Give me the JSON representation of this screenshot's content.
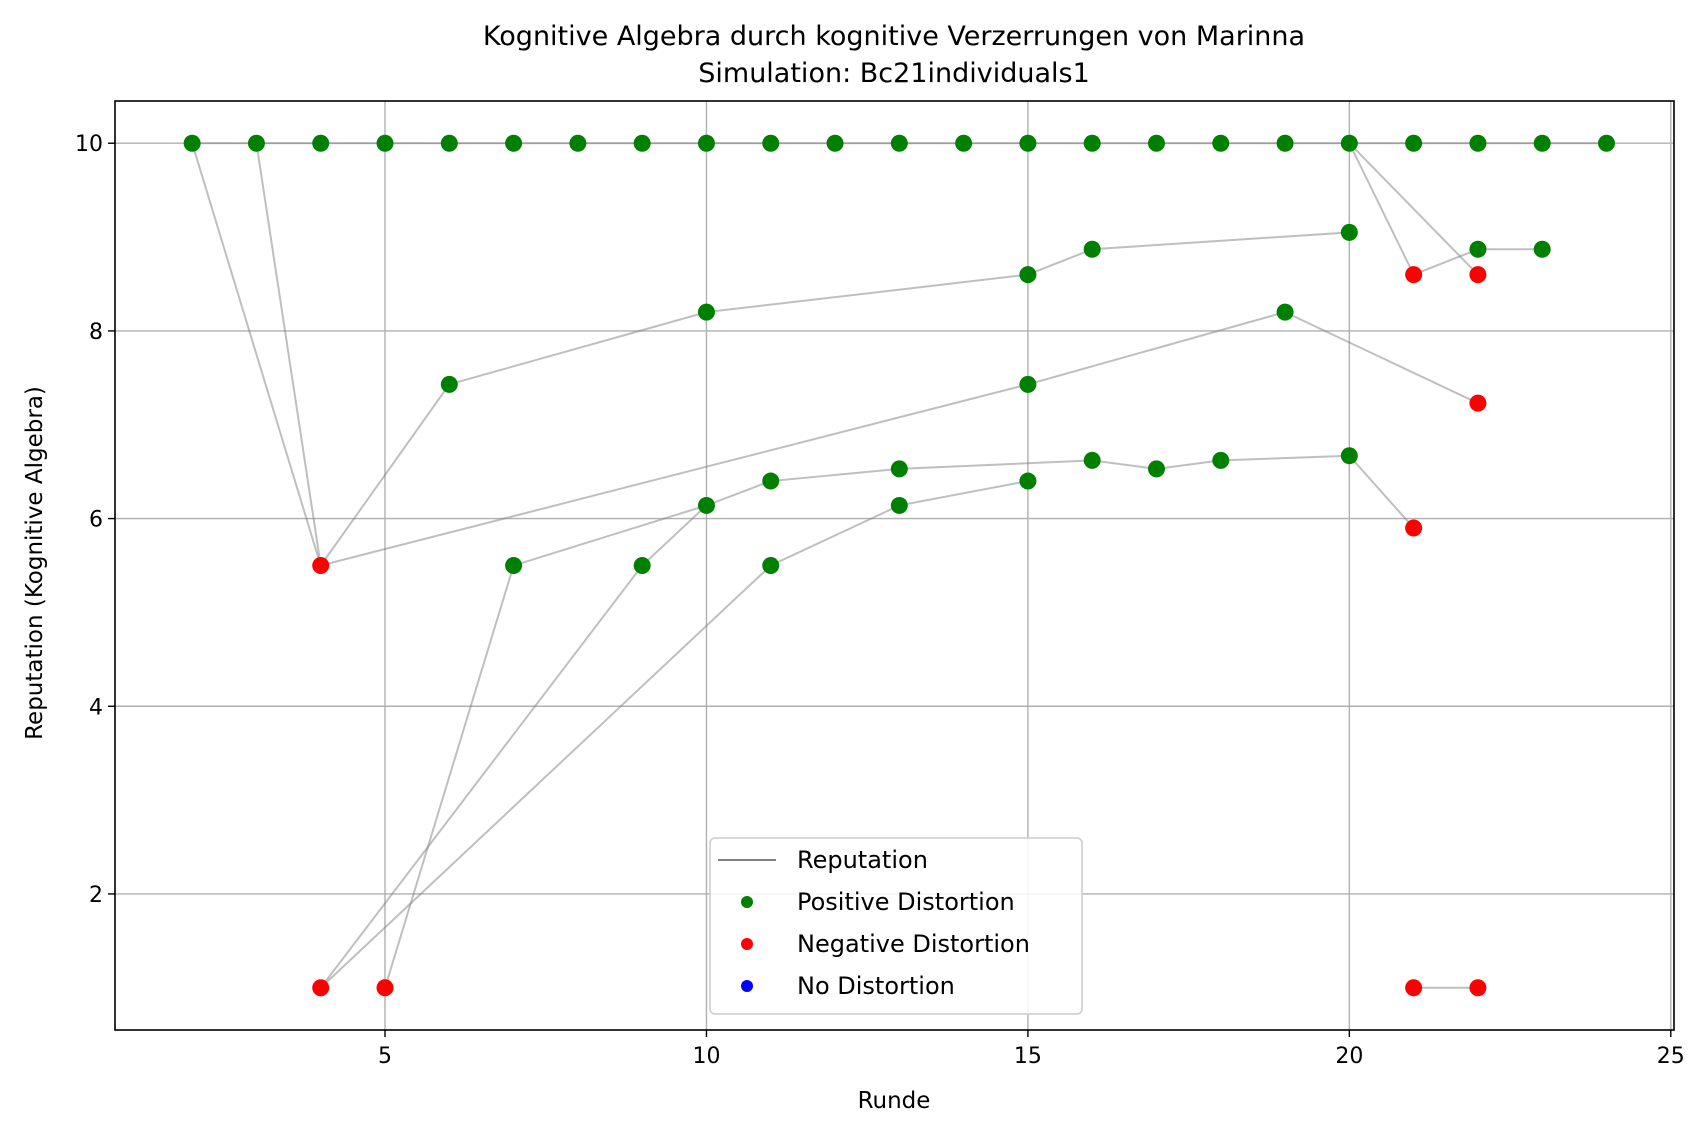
{
  "chart_data": {
    "type": "scatter",
    "title": "Kognitive Algebra durch kognitive Verzerrungen von Marinna",
    "subtitle": "Simulation: Bc21individuals1",
    "xlabel": "Runde",
    "ylabel": "Reputation (Kognitive Algebra)",
    "xlim": [
      0.8,
      25.05
    ],
    "ylim": [
      0.55,
      10.45
    ],
    "xticks": [
      5,
      10,
      15,
      20,
      25
    ],
    "yticks": [
      2,
      4,
      6,
      8,
      10
    ],
    "grid": true,
    "legend_position": "bottom-center",
    "legend": [
      {
        "label": "Reputation",
        "kind": "line",
        "color": "#808080"
      },
      {
        "label": "Positive Distortion",
        "kind": "marker",
        "color": "#008000"
      },
      {
        "label": "Negative Distortion",
        "kind": "marker",
        "color": "#ff0000"
      },
      {
        "label": "No Distortion",
        "kind": "marker",
        "color": "#0000ff"
      }
    ],
    "colors": {
      "positive": "#008000",
      "negative": "#ff0000",
      "none": "#0000ff",
      "line": "#808080"
    },
    "trajectories": [
      [
        [
          2,
          10
        ],
        [
          4,
          5.5
        ],
        [
          6,
          7.43
        ],
        [
          10,
          8.2
        ],
        [
          15,
          8.6
        ],
        [
          16,
          8.87
        ],
        [
          20,
          9.05
        ]
      ],
      [
        [
          3,
          10
        ],
        [
          4,
          5.5
        ],
        [
          15,
          7.43
        ],
        [
          19,
          8.2
        ],
        [
          22,
          7.23
        ]
      ],
      [
        [
          4,
          1
        ],
        [
          9,
          5.5
        ],
        [
          10,
          6.14
        ],
        [
          11,
          6.4
        ],
        [
          13,
          6.53
        ],
        [
          16,
          6.62
        ],
        [
          17,
          6.53
        ],
        [
          18,
          6.62
        ],
        [
          20,
          6.67
        ],
        [
          21,
          5.9
        ]
      ],
      [
        [
          5,
          1
        ],
        [
          7,
          5.5
        ],
        [
          10,
          6.14
        ]
      ],
      [
        [
          4,
          1
        ],
        [
          11,
          5.5
        ],
        [
          13,
          6.14
        ],
        [
          15,
          6.4
        ]
      ],
      [
        [
          20,
          10
        ],
        [
          21,
          8.6
        ],
        [
          22,
          8.87
        ],
        [
          23,
          8.87
        ]
      ],
      [
        [
          20,
          10
        ],
        [
          22,
          8.6
        ]
      ],
      [
        [
          21,
          1
        ],
        [
          22,
          1
        ]
      ],
      [
        [
          2,
          10
        ],
        [
          24,
          10
        ]
      ]
    ],
    "points": [
      {
        "x": 2,
        "y": 10,
        "d": "positive"
      },
      {
        "x": 3,
        "y": 10,
        "d": "positive"
      },
      {
        "x": 4,
        "y": 10,
        "d": "positive"
      },
      {
        "x": 5,
        "y": 10,
        "d": "positive"
      },
      {
        "x": 6,
        "y": 10,
        "d": "positive"
      },
      {
        "x": 7,
        "y": 10,
        "d": "positive"
      },
      {
        "x": 8,
        "y": 10,
        "d": "positive"
      },
      {
        "x": 9,
        "y": 10,
        "d": "positive"
      },
      {
        "x": 10,
        "y": 10,
        "d": "positive"
      },
      {
        "x": 11,
        "y": 10,
        "d": "positive"
      },
      {
        "x": 12,
        "y": 10,
        "d": "positive"
      },
      {
        "x": 13,
        "y": 10,
        "d": "positive"
      },
      {
        "x": 14,
        "y": 10,
        "d": "positive"
      },
      {
        "x": 15,
        "y": 10,
        "d": "positive"
      },
      {
        "x": 16,
        "y": 10,
        "d": "positive"
      },
      {
        "x": 17,
        "y": 10,
        "d": "positive"
      },
      {
        "x": 18,
        "y": 10,
        "d": "positive"
      },
      {
        "x": 19,
        "y": 10,
        "d": "positive"
      },
      {
        "x": 20,
        "y": 10,
        "d": "positive"
      },
      {
        "x": 21,
        "y": 10,
        "d": "positive"
      },
      {
        "x": 22,
        "y": 10,
        "d": "positive"
      },
      {
        "x": 23,
        "y": 10,
        "d": "positive"
      },
      {
        "x": 24,
        "y": 10,
        "d": "positive"
      },
      {
        "x": 20,
        "y": 9.05,
        "d": "positive"
      },
      {
        "x": 16,
        "y": 8.87,
        "d": "positive"
      },
      {
        "x": 22,
        "y": 8.87,
        "d": "positive"
      },
      {
        "x": 23,
        "y": 8.87,
        "d": "positive"
      },
      {
        "x": 15,
        "y": 8.6,
        "d": "positive"
      },
      {
        "x": 10,
        "y": 8.2,
        "d": "positive"
      },
      {
        "x": 19,
        "y": 8.2,
        "d": "positive"
      },
      {
        "x": 6,
        "y": 7.43,
        "d": "positive"
      },
      {
        "x": 15,
        "y": 7.43,
        "d": "positive"
      },
      {
        "x": 20,
        "y": 6.67,
        "d": "positive"
      },
      {
        "x": 16,
        "y": 6.62,
        "d": "positive"
      },
      {
        "x": 18,
        "y": 6.62,
        "d": "positive"
      },
      {
        "x": 13,
        "y": 6.53,
        "d": "positive"
      },
      {
        "x": 17,
        "y": 6.53,
        "d": "positive"
      },
      {
        "x": 11,
        "y": 6.4,
        "d": "positive"
      },
      {
        "x": 15,
        "y": 6.4,
        "d": "positive"
      },
      {
        "x": 10,
        "y": 6.14,
        "d": "positive"
      },
      {
        "x": 13,
        "y": 6.14,
        "d": "positive"
      },
      {
        "x": 7,
        "y": 5.5,
        "d": "positive"
      },
      {
        "x": 9,
        "y": 5.5,
        "d": "positive"
      },
      {
        "x": 11,
        "y": 5.5,
        "d": "positive"
      },
      {
        "x": 21,
        "y": 8.6,
        "d": "negative"
      },
      {
        "x": 22,
        "y": 8.6,
        "d": "negative"
      },
      {
        "x": 22,
        "y": 7.23,
        "d": "negative"
      },
      {
        "x": 21,
        "y": 5.9,
        "d": "negative"
      },
      {
        "x": 4,
        "y": 5.5,
        "d": "negative"
      },
      {
        "x": 4,
        "y": 1,
        "d": "negative"
      },
      {
        "x": 5,
        "y": 1,
        "d": "negative"
      },
      {
        "x": 21,
        "y": 1,
        "d": "negative"
      },
      {
        "x": 22,
        "y": 1,
        "d": "negative"
      }
    ]
  }
}
